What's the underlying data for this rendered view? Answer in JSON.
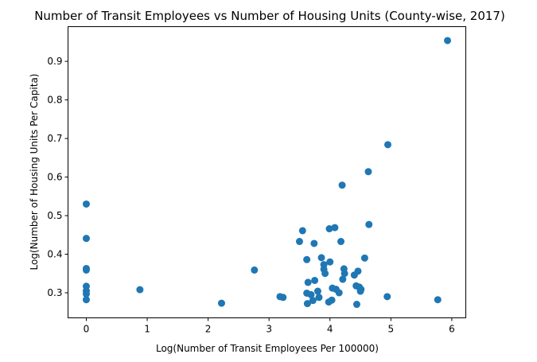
{
  "chart_data": {
    "type": "scatter",
    "title": "Number of Transit Employees vs Number of Housing Units (County-wise, 2017)",
    "xlabel": "Log(Number of Transit Employees Per 100000)",
    "ylabel": "Log(Number of Housing Units Per Capita)",
    "xlim": [
      -0.3,
      6.23
    ],
    "ylim": [
      0.235,
      0.99
    ],
    "xticks": [
      0,
      1,
      2,
      3,
      4,
      5,
      6
    ],
    "yticks": [
      0.3,
      0.4,
      0.5,
      0.6,
      0.7,
      0.8,
      0.9
    ],
    "grid": false,
    "marker_color": "#1f77b4",
    "points": [
      [
        0,
        0.53
      ],
      [
        0,
        0.441
      ],
      [
        0,
        0.363
      ],
      [
        0,
        0.359
      ],
      [
        0,
        0.317
      ],
      [
        0,
        0.305
      ],
      [
        0,
        0.297
      ],
      [
        0,
        0.282
      ],
      [
        0.88,
        0.308
      ],
      [
        2.22,
        0.273
      ],
      [
        2.76,
        0.359
      ],
      [
        3.18,
        0.29
      ],
      [
        3.23,
        0.288
      ],
      [
        3.5,
        0.433
      ],
      [
        3.55,
        0.461
      ],
      [
        3.62,
        0.386
      ],
      [
        3.62,
        0.299
      ],
      [
        3.63,
        0.272
      ],
      [
        3.64,
        0.327
      ],
      [
        3.69,
        0.295
      ],
      [
        3.72,
        0.28
      ],
      [
        3.74,
        0.428
      ],
      [
        3.75,
        0.332
      ],
      [
        3.8,
        0.304
      ],
      [
        3.82,
        0.288
      ],
      [
        3.86,
        0.391
      ],
      [
        3.9,
        0.373
      ],
      [
        3.9,
        0.361
      ],
      [
        3.92,
        0.35
      ],
      [
        3.98,
        0.276
      ],
      [
        3.99,
        0.466
      ],
      [
        4.0,
        0.38
      ],
      [
        4.03,
        0.281
      ],
      [
        4.04,
        0.312
      ],
      [
        4.08,
        0.469
      ],
      [
        4.1,
        0.309
      ],
      [
        4.15,
        0.3
      ],
      [
        4.18,
        0.433
      ],
      [
        4.2,
        0.579
      ],
      [
        4.21,
        0.335
      ],
      [
        4.23,
        0.362
      ],
      [
        4.24,
        0.35
      ],
      [
        4.4,
        0.346
      ],
      [
        4.43,
        0.318
      ],
      [
        4.44,
        0.27
      ],
      [
        4.46,
        0.356
      ],
      [
        4.48,
        0.315
      ],
      [
        4.5,
        0.304
      ],
      [
        4.51,
        0.309
      ],
      [
        4.57,
        0.39
      ],
      [
        4.63,
        0.614
      ],
      [
        4.64,
        0.477
      ],
      [
        4.95,
        0.684
      ],
      [
        4.94,
        0.29
      ],
      [
        5.77,
        0.282
      ],
      [
        5.93,
        0.954
      ]
    ]
  }
}
